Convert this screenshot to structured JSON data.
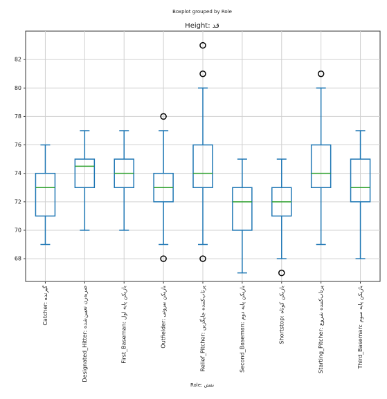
{
  "chart_data": {
    "type": "box",
    "title": "Boxplot grouped by Role",
    "subtitle": "Height: قد",
    "x_label": "Role: نقش",
    "categories": [
      "Catcher: گیرنده",
      "Designated_Hitter: ضربه‌زن تعیین‌شده",
      "First_Baseman: بازیکن پایه اول",
      "Outfielder: بازیکن بیرونی",
      "Relief_Pitcher: پرتاب‌کننده جایگزین",
      "Second_Baseman: بازیکن پایه دوم",
      "Shortstop: بازیکن کوتاه",
      "Starting_Pitcher: پرتاب‌کننده شروع",
      "Third_Baseman: بازیکن پایه سوم"
    ],
    "boxes": [
      {
        "whislo": 69,
        "q1": 71,
        "med": 73,
        "q3": 74,
        "whishi": 76,
        "fliers": []
      },
      {
        "whislo": 70,
        "q1": 73,
        "med": 74.5,
        "q3": 75,
        "whishi": 77,
        "fliers": []
      },
      {
        "whislo": 70,
        "q1": 73,
        "med": 74,
        "q3": 75,
        "whishi": 77,
        "fliers": []
      },
      {
        "whislo": 69,
        "q1": 72,
        "med": 73,
        "q3": 74,
        "whishi": 77,
        "fliers": [
          78,
          68
        ]
      },
      {
        "whislo": 69,
        "q1": 73,
        "med": 74,
        "q3": 76,
        "whishi": 80,
        "fliers": [
          81,
          83,
          68
        ]
      },
      {
        "whislo": 67,
        "q1": 70,
        "med": 72,
        "q3": 73,
        "whishi": 75,
        "fliers": []
      },
      {
        "whislo": 68,
        "q1": 71,
        "med": 72,
        "q3": 73,
        "whishi": 75,
        "fliers": [
          67
        ]
      },
      {
        "whislo": 69,
        "q1": 73,
        "med": 74,
        "q3": 76,
        "whishi": 80,
        "fliers": [
          81
        ]
      },
      {
        "whislo": 68,
        "q1": 72,
        "med": 73,
        "q3": 75,
        "whishi": 77,
        "fliers": []
      }
    ],
    "box_color": "#1f77b4",
    "median_color": "#2ca02c",
    "flier_color": "#000000",
    "ylim": [
      66.4,
      84
    ],
    "yticks": [
      68,
      70,
      72,
      74,
      76,
      78,
      80,
      82
    ],
    "grid": true
  }
}
